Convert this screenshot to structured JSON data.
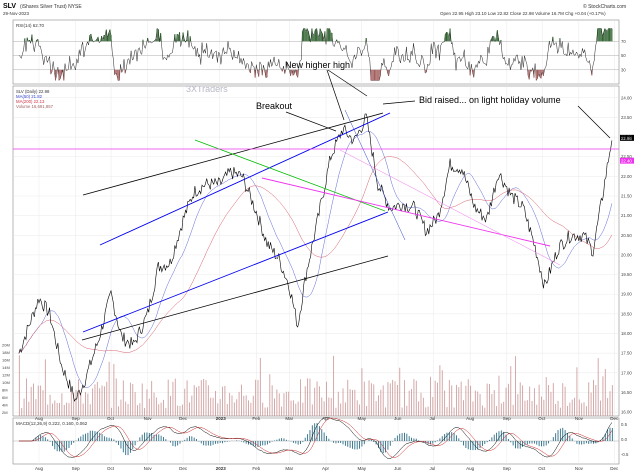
{
  "header": {
    "symbol": "SLV",
    "name": "(iShares Silver Trust) NYSE",
    "date": "29-Nov-2023",
    "quote": "Open 22.95  High 23.10  Low 22.82  Close 22.98  Volume 16.7M  Chg +0.04 (+0.17%)",
    "brand": "© StockCharts.com"
  },
  "panels": {
    "rsi_label": "RSI(14) 62.70",
    "price_legend": [
      "SLV (Daily) 22.98",
      "MA(50) 21.82",
      "MA(200) 22.13",
      "Volume 16,691,857"
    ],
    "macd_label": "MACD(12,26,9) 0.222, 0.160, 0.062"
  },
  "annotations": {
    "watermark": "3XTraders",
    "new_high": "New higher high",
    "breakout": "Breakout",
    "bid_raised": "Bid raised... on light holiday volume"
  },
  "x_labels": [
    "Aug",
    "Sep",
    "Oct",
    "Nov",
    "Dec",
    "2023",
    "Feb",
    "Mar",
    "Apr",
    "May",
    "Jun",
    "Jul",
    "Aug",
    "Sep",
    "Oct",
    "Nov",
    "Dec"
  ],
  "rsi_ticks": [
    "70",
    "50",
    "30"
  ],
  "price_ticks": [
    "24.00",
    "23.50",
    "23.00",
    "22.50",
    "22.00",
    "21.50",
    "21.00",
    "20.50",
    "20.00",
    "19.50",
    "19.00",
    "18.50",
    "18.00",
    "17.50",
    "17.00",
    "16.50",
    "16.00"
  ],
  "price_markers": {
    "last": "22.98",
    "level": "22.40"
  },
  "volume_ticks": [
    "20M",
    "18M",
    "16M",
    "14M",
    "12M",
    "10M",
    "8M",
    "6M",
    "4M",
    "2M"
  ],
  "macd_ticks": [
    "0.5",
    "0.0",
    "-0.5"
  ],
  "colors": {
    "price": "#000000",
    "ma50": "#3344cc",
    "ma200": "#cc3344",
    "trend_black": "#000000",
    "trend_blue": "#0000ee",
    "trend_green": "#00bb00",
    "trend_magenta": "#ee33ee",
    "volume": "#c08080",
    "rsi_fill": "#2b5e2b"
  },
  "chart_data": {
    "type": "line",
    "title": "SLV (iShares Silver Trust) NYSE",
    "xlabel": "",
    "ylabel": "",
    "ylim": [
      15.9,
      24.3
    ],
    "series": [
      {
        "name": "SLV",
        "x": [
          "2022-07-15",
          "2022-08-01",
          "2022-08-10",
          "2022-08-20",
          "2022-09-01",
          "2022-09-10",
          "2022-09-20",
          "2022-10-01",
          "2022-10-10",
          "2022-10-20",
          "2022-11-01",
          "2022-11-10",
          "2022-11-20",
          "2022-12-01",
          "2022-12-10",
          "2022-12-20",
          "2023-01-01",
          "2023-01-10",
          "2023-01-20",
          "2023-02-01",
          "2023-02-10",
          "2023-02-20",
          "2023-03-01",
          "2023-03-08",
          "2023-03-15",
          "2023-03-25",
          "2023-04-05",
          "2023-04-15",
          "2023-04-25",
          "2023-05-05",
          "2023-05-15",
          "2023-05-25",
          "2023-06-05",
          "2023-06-15",
          "2023-06-25",
          "2023-07-05",
          "2023-07-15",
          "2023-07-25",
          "2023-08-05",
          "2023-08-15",
          "2023-08-25",
          "2023-09-05",
          "2023-09-15",
          "2023-09-25",
          "2023-10-03",
          "2023-10-15",
          "2023-10-25",
          "2023-11-05",
          "2023-11-13",
          "2023-11-20",
          "2023-11-29"
        ],
        "values": [
          17.5,
          18.9,
          18.5,
          17.2,
          16.3,
          16.9,
          17.8,
          19.0,
          17.9,
          17.7,
          18.5,
          19.7,
          19.8,
          20.9,
          21.6,
          21.8,
          21.8,
          22.1,
          22.0,
          21.1,
          20.3,
          19.9,
          19.2,
          18.2,
          19.5,
          20.9,
          22.5,
          23.2,
          22.9,
          23.5,
          21.8,
          21.2,
          21.3,
          21.2,
          20.6,
          21.0,
          22.3,
          22.2,
          21.2,
          20.9,
          22.1,
          21.5,
          21.2,
          20.2,
          19.2,
          20.2,
          20.5,
          20.5,
          20.1,
          21.3,
          22.98
        ]
      }
    ],
    "annotations": [
      "New higher high",
      "Breakout",
      "Bid raised... on light holiday volume"
    ]
  }
}
